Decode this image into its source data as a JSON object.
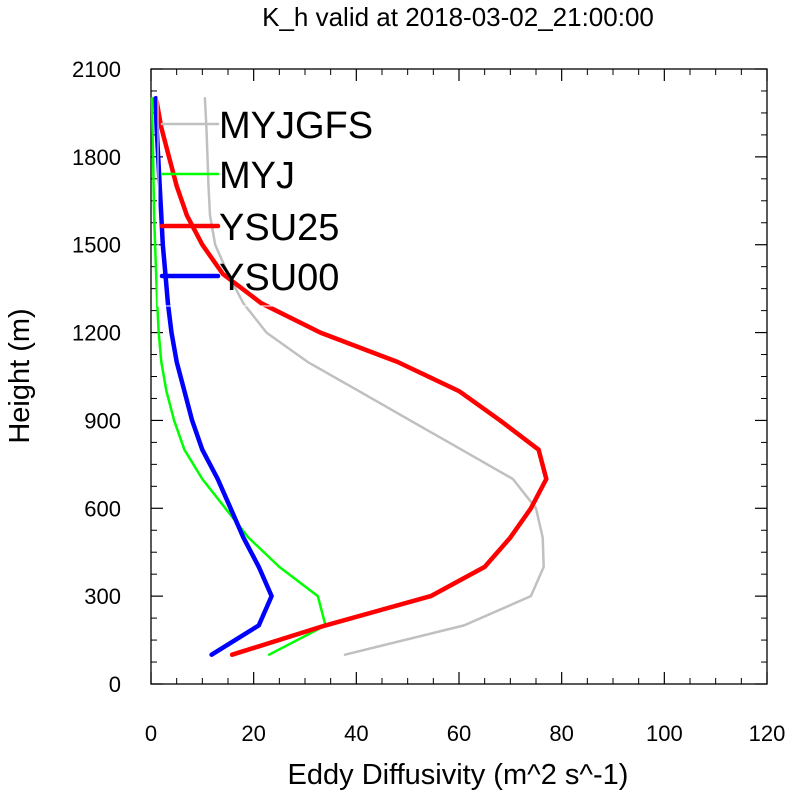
{
  "chart_data": {
    "type": "line",
    "title": "K_h valid at 2018-03-02_21:00:00",
    "xlabel": "Eddy Diffusivity (m^2 s^-1)",
    "ylabel": "Height (m)",
    "xlim": [
      0,
      120
    ],
    "ylim": [
      0,
      2100
    ],
    "xticks": [
      0,
      20,
      40,
      60,
      80,
      100,
      120
    ],
    "yticks": [
      0,
      300,
      600,
      900,
      1200,
      1500,
      1800,
      2100
    ],
    "xtick_labels": [
      "0",
      "20",
      "40",
      "60",
      "80",
      "100",
      "120"
    ],
    "ytick_labels": [
      "0",
      "300",
      "600",
      "900",
      "1200",
      "1500",
      "1800",
      "2100"
    ],
    "grid": false,
    "legend_position": "top-left",
    "series": [
      {
        "name": "MYJGFS",
        "color": "#c0c0c0",
        "points": [
          [
            37.8,
            100
          ],
          [
            61,
            200
          ],
          [
            74,
            300
          ],
          [
            76.5,
            400
          ],
          [
            76.3,
            500
          ],
          [
            75,
            600
          ],
          [
            70.5,
            700
          ],
          [
            60.5,
            800
          ],
          [
            50.5,
            900
          ],
          [
            40.5,
            1000
          ],
          [
            30.5,
            1100
          ],
          [
            22.5,
            1200
          ],
          [
            18,
            1300
          ],
          [
            15,
            1400
          ],
          [
            12.5,
            1500
          ],
          [
            11.5,
            1600
          ],
          [
            11.2,
            1700
          ],
          [
            11,
            1800
          ],
          [
            10.8,
            1900
          ],
          [
            10.5,
            2000
          ]
        ]
      },
      {
        "name": "MYJ",
        "color": "#00ff00",
        "points": [
          [
            23,
            100
          ],
          [
            34,
            200
          ],
          [
            32.5,
            300
          ],
          [
            25,
            400
          ],
          [
            19,
            500
          ],
          [
            14.5,
            600
          ],
          [
            10,
            700
          ],
          [
            6.5,
            800
          ],
          [
            4.5,
            900
          ],
          [
            3,
            1000
          ],
          [
            2,
            1100
          ],
          [
            1.5,
            1200
          ],
          [
            1.2,
            1300
          ],
          [
            1,
            1400
          ],
          [
            0.8,
            1500
          ],
          [
            0.6,
            1600
          ],
          [
            0.5,
            1700
          ],
          [
            0.4,
            1800
          ],
          [
            0.3,
            1900
          ],
          [
            0.2,
            2000
          ]
        ]
      },
      {
        "name": "YSU25",
        "color": "#ff0000",
        "points": [
          [
            15.8,
            100
          ],
          [
            34,
            200
          ],
          [
            54.5,
            300
          ],
          [
            65,
            400
          ],
          [
            70,
            500
          ],
          [
            74,
            600
          ],
          [
            77,
            700
          ],
          [
            75.5,
            800
          ],
          [
            68,
            900
          ],
          [
            60,
            1000
          ],
          [
            48,
            1100
          ],
          [
            33,
            1200
          ],
          [
            21.5,
            1300
          ],
          [
            14,
            1400
          ],
          [
            10,
            1500
          ],
          [
            7,
            1600
          ],
          [
            5,
            1700
          ],
          [
            3.5,
            1800
          ],
          [
            2,
            1900
          ],
          [
            1,
            2000
          ]
        ]
      },
      {
        "name": "YSU00",
        "color": "#0000ff",
        "points": [
          [
            11.8,
            100
          ],
          [
            21,
            200
          ],
          [
            23.5,
            300
          ],
          [
            21,
            400
          ],
          [
            18,
            500
          ],
          [
            15.5,
            600
          ],
          [
            13,
            700
          ],
          [
            10,
            800
          ],
          [
            8,
            900
          ],
          [
            6.5,
            1000
          ],
          [
            5,
            1100
          ],
          [
            4,
            1200
          ],
          [
            3.3,
            1300
          ],
          [
            2.8,
            1400
          ],
          [
            2.3,
            1500
          ],
          [
            2,
            1600
          ],
          [
            1.7,
            1700
          ],
          [
            1.4,
            1800
          ],
          [
            1.1,
            1900
          ],
          [
            0.9,
            2000
          ]
        ]
      }
    ]
  }
}
